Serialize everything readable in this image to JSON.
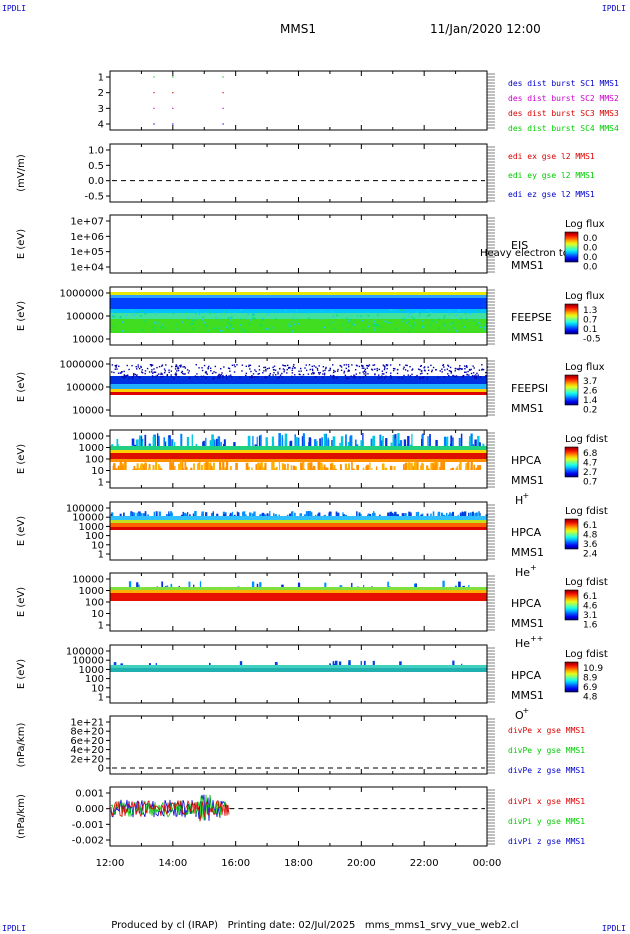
{
  "corners": {
    "label": "IPDLI"
  },
  "header": {
    "spacecraft": "MMS1",
    "date": "11/Jan/2020 12:00"
  },
  "footer": {
    "produced": "Produced by cl (IRAP)",
    "printing": "Printing date: 02/Jul/2025",
    "file": "mms_mms1_srvy_vue_web2.cl"
  },
  "x_axis": {
    "ticks": [
      "12:00",
      "14:00",
      "16:00",
      "18:00",
      "20:00",
      "22:00",
      "00:00"
    ]
  },
  "colors": {
    "blue": "#0000cc",
    "magenta": "#cc00cc",
    "red": "#dd0000",
    "green": "#00cc00"
  },
  "chart_data": [
    {
      "type": "scatter",
      "panel": "burst",
      "yticks": [
        "1",
        "2",
        "3",
        "4"
      ],
      "legend": [
        {
          "text": "des dist burst SC1 MMS1",
          "color": "#0000cc"
        },
        {
          "text": "des dist burst SC2 MMS2",
          "color": "#cc00cc"
        },
        {
          "text": "des dist burst SC3 MMS3",
          "color": "#dd0000"
        },
        {
          "text": "des dist burst SC4 MMS4",
          "color": "#00cc00"
        }
      ],
      "points": [
        {
          "t": 13.4,
          "sc": 1
        },
        {
          "t": 14.0,
          "sc": 1
        },
        {
          "t": 15.6,
          "sc": 1
        },
        {
          "t": 13.4,
          "sc": 2
        },
        {
          "t": 14.0,
          "sc": 2
        },
        {
          "t": 15.6,
          "sc": 2
        },
        {
          "t": 13.4,
          "sc": 3
        },
        {
          "t": 14.0,
          "sc": 3
        },
        {
          "t": 15.6,
          "sc": 3
        },
        {
          "t": 13.4,
          "sc": 4
        },
        {
          "t": 14.0,
          "sc": 4
        },
        {
          "t": 15.6,
          "sc": 4
        }
      ]
    },
    {
      "type": "line",
      "panel": "edi",
      "ylabel": "(mV/m)",
      "yticks": [
        "1.0",
        "0.5",
        "0.0",
        "-0.5"
      ],
      "legend": [
        {
          "text": "edi ex gse l2 MMS1",
          "color": "#dd0000"
        },
        {
          "text": "edi ey gse l2 MMS1",
          "color": "#00cc00"
        },
        {
          "text": "edi ez gse l2 MMS1",
          "color": "#0000cc"
        }
      ]
    },
    {
      "type": "heatmap",
      "panel": "eis",
      "ylabel": "E (eV)",
      "yticks": [
        "1e+07",
        "1e+06",
        "1e+05",
        "1e+04"
      ],
      "instrument": "EIS",
      "sc": "MMS1",
      "extra": "Heavy electron to",
      "cbar_title": "Log flux",
      "cbar_ticks": [
        "0.0",
        "0.0",
        "0.0",
        "0.0"
      ]
    },
    {
      "type": "heatmap",
      "panel": "feepse",
      "ylabel": "E (eV)",
      "yticks": [
        "1000000",
        "100000",
        "10000"
      ],
      "instrument": "FEEPSE",
      "sc": "MMS1",
      "cbar_title": "Log flux",
      "cbar_ticks": [
        "1.3",
        "0.7",
        "0.1",
        "-0.5"
      ]
    },
    {
      "type": "heatmap",
      "panel": "feepsi",
      "ylabel": "E (eV)",
      "yticks": [
        "1000000",
        "100000",
        "10000"
      ],
      "instrument": "FEEPSI",
      "sc": "MMS1",
      "cbar_title": "Log flux",
      "cbar_ticks": [
        "3.7",
        "2.6",
        "1.4",
        "0.2"
      ]
    },
    {
      "type": "heatmap",
      "panel": "hpca_h",
      "ylabel": "E (eV)",
      "yticks": [
        "10000",
        "1000",
        "100",
        "10",
        "1"
      ],
      "instrument": "HPCA",
      "sc": "MMS1",
      "species": "H",
      "species_sup": "+",
      "cbar_title": "Log fdist",
      "cbar_ticks": [
        "6.8",
        "4.7",
        "2.7",
        "0.7"
      ]
    },
    {
      "type": "heatmap",
      "panel": "hpca_he",
      "ylabel": "E (eV)",
      "yticks": [
        "100000",
        "10000",
        "1000",
        "100",
        "10",
        "1"
      ],
      "instrument": "HPCA",
      "sc": "MMS1",
      "species": "He",
      "species_sup": "+",
      "cbar_title": "Log fdist",
      "cbar_ticks": [
        "6.1",
        "4.8",
        "3.6",
        "2.4"
      ]
    },
    {
      "type": "heatmap",
      "panel": "hpca_hepp",
      "ylabel": "E (eV)",
      "yticks": [
        "10000",
        "1000",
        "100",
        "10",
        "1"
      ],
      "instrument": "HPCA",
      "sc": "MMS1",
      "species": "He",
      "species_sup": "++",
      "cbar_title": "Log fdist",
      "cbar_ticks": [
        "6.1",
        "4.6",
        "3.1",
        "1.6"
      ]
    },
    {
      "type": "heatmap",
      "panel": "hpca_o",
      "ylabel": "E (eV)",
      "yticks": [
        "100000",
        "10000",
        "1000",
        "100",
        "10",
        "1"
      ],
      "instrument": "HPCA",
      "sc": "MMS1",
      "species": "O",
      "species_sup": "+",
      "cbar_title": "Log fdist",
      "cbar_ticks": [
        "10.9",
        "8.9",
        "6.9",
        "4.8"
      ]
    },
    {
      "type": "line",
      "panel": "divpe",
      "ylabel": "(nPa/km)",
      "yticks": [
        "1e+21",
        "8e+20",
        "6e+20",
        "4e+20",
        "2e+20",
        "0"
      ],
      "legend": [
        {
          "text": "divPe x gse MMS1",
          "color": "#dd0000"
        },
        {
          "text": "divPe y gse MMS1",
          "color": "#00cc00"
        },
        {
          "text": "divPe z gse MMS1",
          "color": "#0000cc"
        }
      ]
    },
    {
      "type": "line",
      "panel": "divpi",
      "ylabel": "(nPa/km)",
      "yticks": [
        "0.001",
        "0.000",
        "-0.001",
        "-0.002"
      ],
      "data_end_time": 15.8,
      "legend": [
        {
          "text": "divPi x gse MMS1",
          "color": "#dd0000"
        },
        {
          "text": "divPi y gse MMS1",
          "color": "#00cc00"
        },
        {
          "text": "divPi z gse MMS1",
          "color": "#0000cc"
        }
      ]
    }
  ]
}
